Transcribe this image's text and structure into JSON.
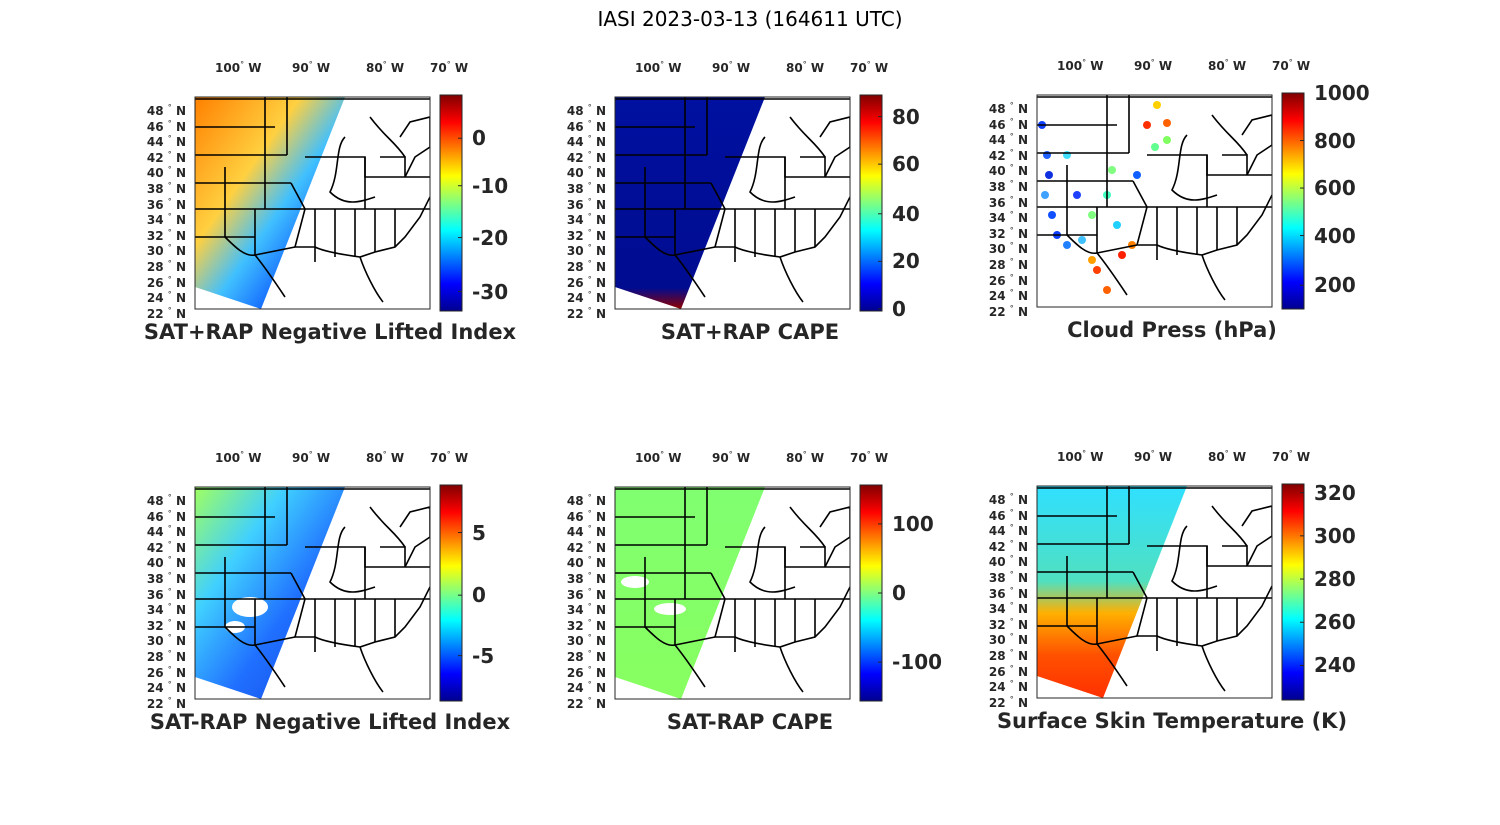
{
  "title": "IASI 2023-03-13 (164611 UTC)",
  "lon_labels": [
    "100",
    "90",
    "80",
    "70"
  ],
  "lon_suffix": "W",
  "lat_labels": [
    "48",
    "46",
    "44",
    "42",
    "40",
    "38",
    "36",
    "34",
    "32",
    "30",
    "28",
    "26",
    "24",
    "22"
  ],
  "lat_suffix": "N",
  "degree_symbol": "°",
  "panels": [
    {
      "title": "SAT+RAP Negative Lifted Index",
      "colorbar_ticks": [
        "0",
        "-10",
        "-20",
        "-30"
      ],
      "fill": "lifted",
      "swath": "full"
    },
    {
      "title": "SAT+RAP CAPE",
      "colorbar_ticks": [
        "80",
        "60",
        "40",
        "20",
        "0"
      ],
      "fill": "cape",
      "swath": "full"
    },
    {
      "title": "Cloud Press (hPa)",
      "colorbar_ticks": [
        "1000",
        "800",
        "600",
        "400",
        "200"
      ],
      "fill": "cloud",
      "swath": "sparse"
    },
    {
      "title": "SAT-RAP Negative Lifted Index",
      "colorbar_ticks": [
        "5",
        "0",
        "-5"
      ],
      "fill": "dlifted",
      "swath": "full"
    },
    {
      "title": "SAT-RAP CAPE",
      "colorbar_ticks": [
        "100",
        "0",
        "-100"
      ],
      "fill": "dcape",
      "swath": "full"
    },
    {
      "title": "Surface Skin Temperature (K)",
      "colorbar_ticks": [
        "320",
        "300",
        "280",
        "260",
        "240"
      ],
      "fill": "skin",
      "swath": "full"
    }
  ],
  "colors": {
    "jet_top": "#800000",
    "jet_bottom": "#00008f",
    "border": "#000000"
  }
}
